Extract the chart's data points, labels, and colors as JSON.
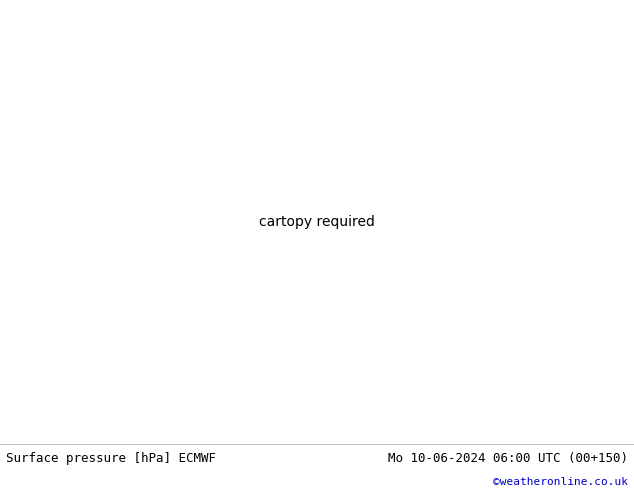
{
  "footer_left": "Surface pressure [hPa] ECMWF",
  "footer_right": "Mo 10-06-2024 06:00 UTC (00+150)",
  "footer_credit": "©weatheronline.co.uk",
  "footer_bg": "#ffffff",
  "footer_text_color": "#000000",
  "credit_color": "#0000cc",
  "fig_width": 6.34,
  "fig_height": 4.9,
  "dpi": 100,
  "font_size_footer": 9,
  "font_size_credit": 8,
  "land_color": "#b5e8a0",
  "sea_color": "#ddeeff",
  "border_color": "#aaaaaa",
  "coastline_color": "#555555",
  "contour_blue": "#0000dd",
  "contour_black": "#000000",
  "contour_red": "#dd0000",
  "label_blue_fontsize": 7,
  "label_black_fontsize": 7,
  "label_red_fontsize": 7,
  "lon_min": 20,
  "lon_max": 130,
  "lat_min": 5,
  "lat_max": 70
}
